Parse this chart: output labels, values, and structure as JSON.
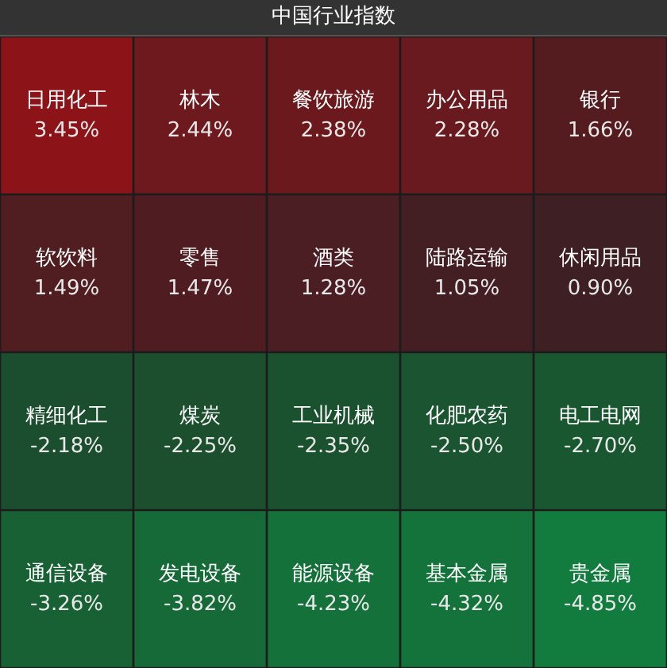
{
  "chart_data": {
    "type": "other",
    "title": "中国行业指数",
    "categories": [
      "日用化工",
      "林木",
      "餐饮旅游",
      "办公用品",
      "银行",
      "软饮料",
      "零售",
      "酒类",
      "陆路运输",
      "休闲用品",
      "精细化工",
      "煤炭",
      "工业机械",
      "化肥农药",
      "电工电网",
      "通信设备",
      "发电设备",
      "能源设备",
      "基本金属",
      "贵金属"
    ],
    "values": [
      3.45,
      2.44,
      2.38,
      2.28,
      1.66,
      1.49,
      1.47,
      1.28,
      1.05,
      0.9,
      -2.18,
      -2.25,
      -2.35,
      -2.5,
      -2.7,
      -3.26,
      -3.82,
      -4.23,
      -4.32,
      -4.85
    ],
    "value_labels": [
      "3.45%",
      "2.44%",
      "2.38%",
      "2.28%",
      "1.66%",
      "1.49%",
      "1.47%",
      "1.28%",
      "1.05%",
      "0.90%",
      "-2.18%",
      "-2.25%",
      "-2.35%",
      "-2.50%",
      "-2.70%",
      "-3.26%",
      "-3.82%",
      "-4.23%",
      "-4.32%",
      "-4.85%"
    ]
  }
}
